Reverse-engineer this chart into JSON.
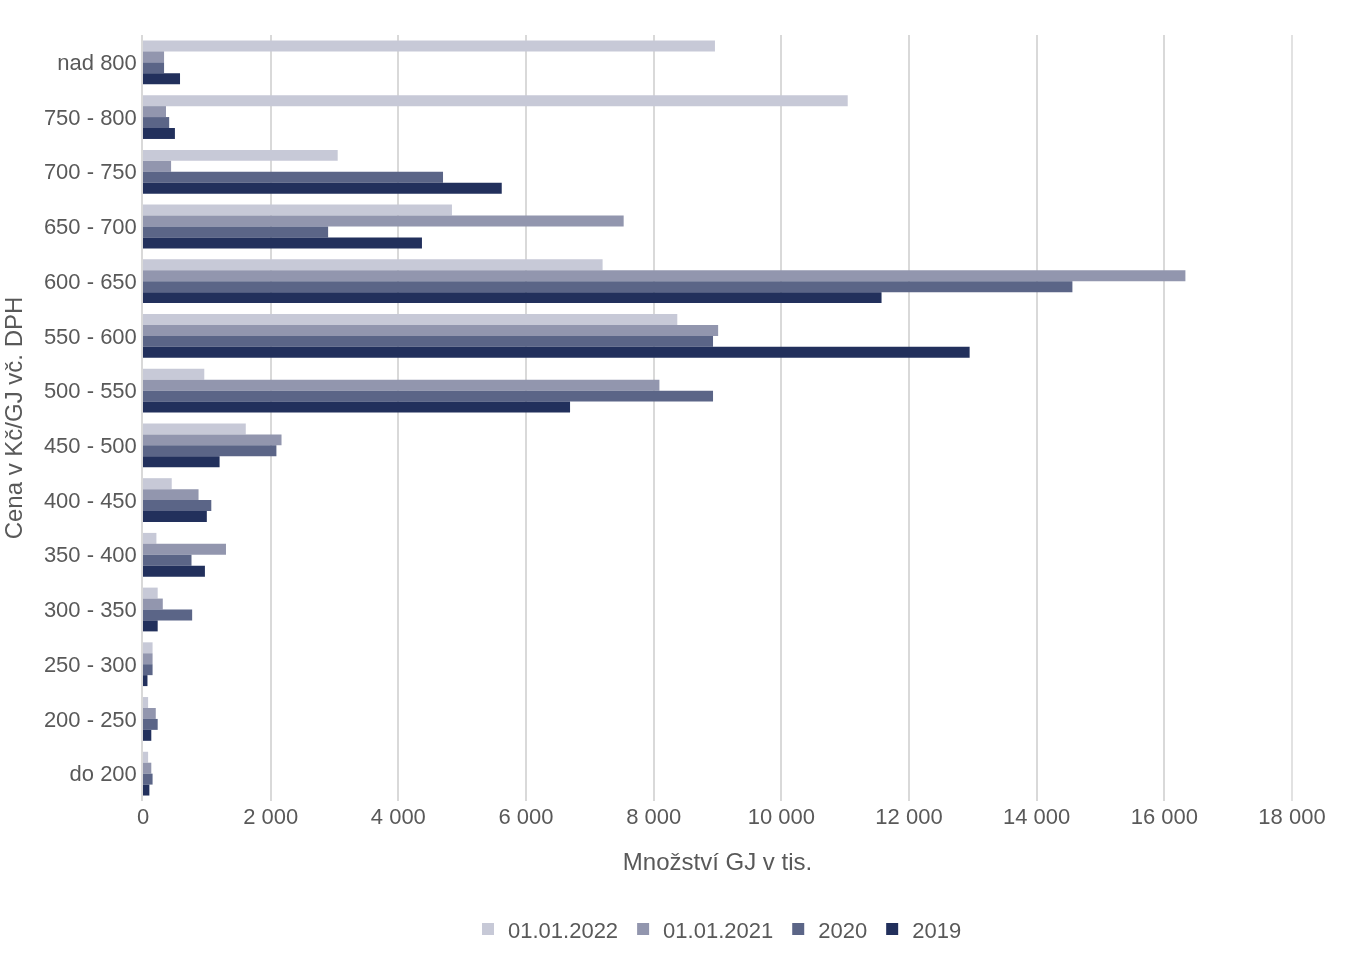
{
  "chart_data": {
    "type": "bar",
    "orientation": "horizontal",
    "xlabel": "Množství GJ v tis.",
    "ylabel": "Cena v Kč/GJ vč. DPH",
    "categories": [
      "nad 800",
      "750 - 800",
      "700 - 750",
      "650 - 700",
      "600 - 650",
      "550 - 600",
      "500 - 550",
      "450 - 500",
      "400 - 450",
      "350 - 400",
      "300 - 350",
      "250 - 300",
      "200 - 250",
      "do 200"
    ],
    "series": [
      {
        "name": "01.01.2022",
        "color": "#c7c9d7",
        "values": [
          8960,
          11040,
          3050,
          4840,
          7200,
          8370,
          960,
          1610,
          450,
          210,
          230,
          150,
          80,
          80
        ]
      },
      {
        "name": "01.01.2021",
        "color": "#9296ae",
        "values": [
          330,
          360,
          440,
          7530,
          16330,
          9010,
          8090,
          2170,
          870,
          1300,
          310,
          150,
          200,
          130
        ]
      },
      {
        "name": "2020",
        "color": "#5b6587",
        "values": [
          330,
          410,
          4700,
          2900,
          14560,
          8930,
          8930,
          2090,
          1070,
          760,
          770,
          150,
          230,
          150
        ]
      },
      {
        "name": "2019",
        "color": "#22305c",
        "values": [
          580,
          500,
          5620,
          4370,
          11570,
          12950,
          6690,
          1200,
          1000,
          970,
          230,
          70,
          130,
          100
        ]
      }
    ],
    "xlim": [
      0,
      18000
    ],
    "xticks": [
      0,
      {
        "value": 2000,
        "label": "2 000"
      },
      {
        "value": 4000,
        "label": "4 000"
      },
      {
        "value": 6000,
        "label": "6 000"
      },
      {
        "value": 8000,
        "label": "8 000"
      },
      {
        "value": 10000,
        "label": "10 000"
      },
      {
        "value": 12000,
        "label": "12 000"
      },
      {
        "value": 14000,
        "label": "14 000"
      },
      {
        "value": 16000,
        "label": "16 000"
      },
      {
        "value": 18000,
        "label": "18 000"
      }
    ],
    "grid": "x",
    "legend": "bottom"
  }
}
